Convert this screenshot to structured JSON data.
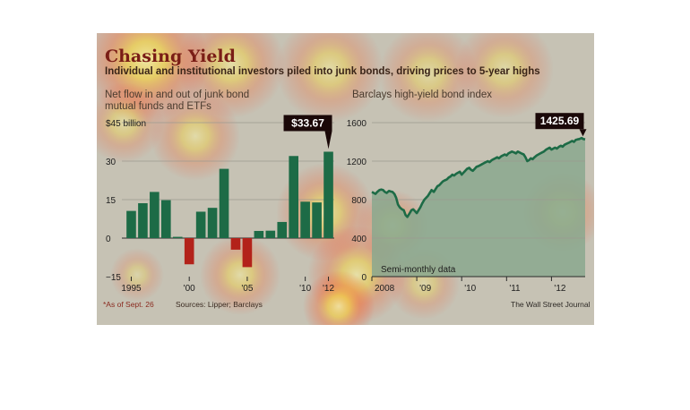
{
  "header": {
    "title": "Chasing Yield",
    "subtitle": "Individual and institutional investors piled into junk bonds, driving prices to 5-year highs"
  },
  "footer": {
    "footnote": "*As of Sept. 26",
    "sources": "Sources: Lipper; Barclays",
    "credit": "The Wall Street Journal"
  },
  "colors": {
    "positive_bar": "#1d6b46",
    "negative_bar": "#b3221a",
    "index_line": "#1d6b46",
    "index_area": "#8aa88e",
    "callout": "#1a0808"
  },
  "chart_data": [
    {
      "type": "bar",
      "title": "Net flow in and out of junk bond mutual funds and ETFs",
      "y_unit_label": "$45 billion",
      "ylim": [
        -15,
        45
      ],
      "yticks": [
        -15,
        0,
        15,
        30,
        45
      ],
      "ytick_labels": [
        "−15",
        "0",
        "15",
        "30",
        "$45 billion"
      ],
      "categories": [
        "1995",
        "1996",
        "1997",
        "1998",
        "1999",
        "2000",
        "2001",
        "2002",
        "2003",
        "2004",
        "2005",
        "2006",
        "2007",
        "2008",
        "2009",
        "2010",
        "2011",
        "2012"
      ],
      "xtick_labels": [
        {
          "year": "1995",
          "label": "1995"
        },
        {
          "year": "2000",
          "label": "'00"
        },
        {
          "year": "2005",
          "label": "'05"
        },
        {
          "year": "2010",
          "label": "'10"
        },
        {
          "year": "2012",
          "label": "'12"
        }
      ],
      "values": [
        10.6,
        13.6,
        18.0,
        14.8,
        0.5,
        -10.2,
        10.3,
        11.8,
        27.0,
        -4.5,
        -11.3,
        2.8,
        2.9,
        6.3,
        32.0,
        14.2,
        13.9,
        33.67
      ],
      "callout": {
        "category": "2012",
        "label": "$33.67"
      },
      "grid": true
    },
    {
      "type": "area",
      "title": "Barclays high-yield bond index",
      "note": "Semi-monthly data",
      "ylim": [
        0,
        1600
      ],
      "yticks": [
        0,
        400,
        800,
        1200,
        1600
      ],
      "xlim": [
        2008.0,
        2012.75
      ],
      "xtick_labels": [
        {
          "x": 2008,
          "label": "2008"
        },
        {
          "x": 2009,
          "label": "'09"
        },
        {
          "x": 2010,
          "label": "'10"
        },
        {
          "x": 2011,
          "label": "'11"
        },
        {
          "x": 2012,
          "label": "'12"
        }
      ],
      "x": [
        2008.0,
        2008.04,
        2008.08,
        2008.12,
        2008.17,
        2008.21,
        2008.25,
        2008.29,
        2008.33,
        2008.38,
        2008.42,
        2008.46,
        2008.5,
        2008.54,
        2008.58,
        2008.62,
        2008.67,
        2008.71,
        2008.75,
        2008.79,
        2008.83,
        2008.88,
        2008.92,
        2008.96,
        2009.0,
        2009.04,
        2009.08,
        2009.12,
        2009.17,
        2009.21,
        2009.25,
        2009.29,
        2009.33,
        2009.38,
        2009.42,
        2009.46,
        2009.5,
        2009.54,
        2009.58,
        2009.62,
        2009.67,
        2009.71,
        2009.75,
        2009.79,
        2009.83,
        2009.88,
        2009.92,
        2009.96,
        2010.0,
        2010.04,
        2010.08,
        2010.12,
        2010.17,
        2010.21,
        2010.25,
        2010.29,
        2010.33,
        2010.38,
        2010.42,
        2010.46,
        2010.5,
        2010.54,
        2010.58,
        2010.62,
        2010.67,
        2010.71,
        2010.75,
        2010.79,
        2010.83,
        2010.88,
        2010.92,
        2010.96,
        2011.0,
        2011.04,
        2011.08,
        2011.12,
        2011.17,
        2011.21,
        2011.25,
        2011.29,
        2011.33,
        2011.38,
        2011.42,
        2011.46,
        2011.5,
        2011.54,
        2011.58,
        2011.62,
        2011.67,
        2011.71,
        2011.75,
        2011.79,
        2011.83,
        2011.88,
        2011.92,
        2011.96,
        2012.0,
        2012.04,
        2012.08,
        2012.12,
        2012.17,
        2012.21,
        2012.25,
        2012.29,
        2012.33,
        2012.38,
        2012.42,
        2012.46,
        2012.5,
        2012.54,
        2012.58,
        2012.62,
        2012.67,
        2012.71,
        2012.75
      ],
      "y": [
        880,
        870,
        860,
        880,
        900,
        905,
        900,
        880,
        870,
        890,
        885,
        880,
        860,
        820,
        750,
        720,
        700,
        690,
        640,
        620,
        650,
        690,
        700,
        680,
        660,
        690,
        720,
        760,
        800,
        820,
        840,
        870,
        900,
        880,
        910,
        940,
        950,
        970,
        990,
        1000,
        1010,
        1030,
        1040,
        1060,
        1050,
        1070,
        1080,
        1090,
        1060,
        1080,
        1100,
        1120,
        1130,
        1110,
        1100,
        1120,
        1140,
        1150,
        1160,
        1170,
        1180,
        1190,
        1200,
        1190,
        1210,
        1220,
        1230,
        1240,
        1230,
        1250,
        1260,
        1270,
        1260,
        1280,
        1290,
        1300,
        1290,
        1280,
        1300,
        1290,
        1280,
        1270,
        1240,
        1200,
        1210,
        1230,
        1220,
        1240,
        1260,
        1270,
        1280,
        1290,
        1300,
        1320,
        1330,
        1340,
        1320,
        1330,
        1340,
        1330,
        1350,
        1360,
        1350,
        1370,
        1380,
        1390,
        1400,
        1410,
        1400,
        1420,
        1425.69,
        1430,
        1440,
        1430,
        1425.69
      ],
      "callout": {
        "x": 2012.7,
        "label": "1425.69"
      },
      "grid": true
    }
  ]
}
